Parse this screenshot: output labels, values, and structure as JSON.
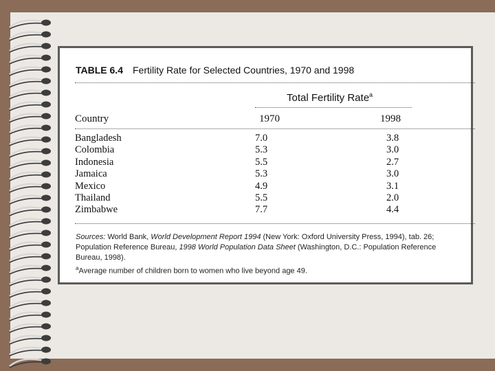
{
  "table": {
    "number": "TABLE 6.4",
    "title": "Fertility Rate for Selected Countries, 1970 and 1998",
    "group_header": "Total Fertility Rate",
    "group_header_mark": "a",
    "columns": [
      "Country",
      "1970",
      "1998"
    ],
    "rows": [
      {
        "country": "Bangladesh",
        "y1970": "7.0",
        "y1998": "3.8"
      },
      {
        "country": "Colombia",
        "y1970": "5.3",
        "y1998": "3.0"
      },
      {
        "country": "Indonesia",
        "y1970": "5.5",
        "y1998": "2.7"
      },
      {
        "country": "Jamaica",
        "y1970": "5.3",
        "y1998": "3.0"
      },
      {
        "country": "Mexico",
        "y1970": "4.9",
        "y1998": "3.1"
      },
      {
        "country": "Thailand",
        "y1970": "5.5",
        "y1998": "2.0"
      },
      {
        "country": "Zimbabwe",
        "y1970": "7.7",
        "y1998": "4.4"
      }
    ]
  },
  "sources": {
    "label": "Sources:",
    "part1": " World Bank, ",
    "pub1": "World Development Report 1994",
    "part2": " (New York: Oxford University Press, 1994), tab. 26; Population Reference Bureau, ",
    "pub2": "1998 World Population Data Sheet",
    "part3": " (Washington, D.C.: Population Reference Bureau, 1998)."
  },
  "footnote": {
    "mark": "a",
    "text": "Average number of children born to women who live beyond age 49."
  }
}
